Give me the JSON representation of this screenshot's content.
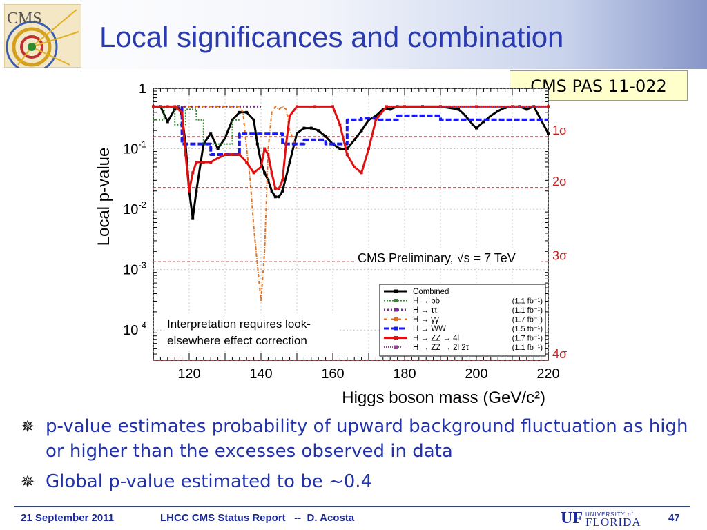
{
  "slide": {
    "title": "Local significances and combination",
    "reference": "CMS PAS 11-022",
    "logo_text": "CMS"
  },
  "bullets": [
    "p-value estimates probability of upward background fluctuation as high or higher than the excesses observed in data",
    "Global p-value estimated to be ~0.4"
  ],
  "footer": {
    "date": "21 September 2011",
    "talk": "LHCC CMS Status Report   --  D. Acosta",
    "logo_mark": "UF",
    "logo_university": "UNIVERSITY of",
    "logo_name": "FLORIDA",
    "page": "47"
  },
  "colors": {
    "title": "#2a3bb0",
    "bullet_text": "#2233aa",
    "sigma": "#cc2222"
  },
  "chart_data": {
    "type": "line",
    "xlabel": "Higgs boson mass (GeV/c²)",
    "ylabel": "Local p-value",
    "xlim": [
      110,
      220
    ],
    "ylim_log10": [
      -4.5,
      0
    ],
    "log_y": true,
    "x_ticks": [
      "120",
      "140",
      "160",
      "180",
      "200",
      "220"
    ],
    "y_ticks": [
      {
        "base": "1",
        "exp": ""
      },
      {
        "base": "10",
        "exp": "-1"
      },
      {
        "base": "10",
        "exp": "-2"
      },
      {
        "base": "10",
        "exp": "-3"
      },
      {
        "base": "10",
        "exp": "-4"
      }
    ],
    "sigma_lines": [
      {
        "label": "1σ",
        "p": 0.1587
      },
      {
        "label": "2σ",
        "p": 0.02275
      },
      {
        "label": "3σ",
        "p": 0.00135
      },
      {
        "label": "4σ",
        "p": 3.17e-05
      }
    ],
    "annotation_preliminary": "CMS Preliminary, √s = 7 TeV",
    "annotation_lee": [
      "Interpretation requires look-",
      "elsewhere effect correction"
    ],
    "legend_position": "bottom-right",
    "series": [
      {
        "name": "Combined",
        "lumi": "",
        "color": "#000000",
        "dash": "",
        "width": 3,
        "x": [
          110,
          112,
          114,
          116,
          117,
          118,
          119,
          120,
          121,
          122,
          124,
          126,
          128,
          130,
          132,
          134,
          136,
          138,
          139,
          140,
          141,
          142,
          143,
          144,
          145,
          146,
          148,
          150,
          152,
          154,
          156,
          158,
          160,
          162,
          164,
          166,
          168,
          170,
          172,
          174,
          176,
          178,
          180,
          185,
          190,
          195,
          197,
          199,
          200,
          202,
          204,
          206,
          208,
          210,
          212,
          214,
          216,
          218,
          220
        ],
        "y": [
          0.5,
          0.5,
          0.28,
          0.45,
          0.5,
          0.35,
          0.12,
          0.02,
          0.007,
          0.02,
          0.12,
          0.18,
          0.1,
          0.15,
          0.3,
          0.4,
          0.4,
          0.3,
          0.12,
          0.06,
          0.04,
          0.03,
          0.02,
          0.016,
          0.016,
          0.02,
          0.06,
          0.18,
          0.22,
          0.22,
          0.2,
          0.16,
          0.12,
          0.1,
          0.1,
          0.14,
          0.2,
          0.3,
          0.35,
          0.45,
          0.45,
          0.5,
          0.5,
          0.5,
          0.5,
          0.45,
          0.35,
          0.25,
          0.22,
          0.28,
          0.35,
          0.42,
          0.48,
          0.5,
          0.5,
          0.45,
          0.5,
          0.3,
          0.18
        ]
      },
      {
        "name": "H → bb",
        "lumi": "(1.1 fb⁻¹)",
        "color": "#2e8b2e",
        "dash": "2,2",
        "width": 2,
        "x": [
          110,
          113,
          113,
          116,
          116,
          119,
          119,
          122,
          122,
          124,
          124,
          128,
          128,
          132,
          132,
          134
        ],
        "y": [
          0.3,
          0.3,
          0.5,
          0.5,
          0.25,
          0.25,
          0.45,
          0.45,
          0.3,
          0.3,
          0.12,
          0.12,
          0.12,
          0.12,
          0.3,
          0.3
        ]
      },
      {
        "name": "H → ττ",
        "lumi": "(1.1 fb⁻¹)",
        "color": "#7b2a9e",
        "dash": "2,3",
        "width": 3,
        "x": [
          110,
          116,
          122,
          130,
          140
        ],
        "y": [
          0.5,
          0.5,
          0.5,
          0.5,
          0.5
        ]
      },
      {
        "name": "H → γγ",
        "lumi": "(1.7 fb⁻¹)",
        "color": "#e07020",
        "dash": "5,2,1,2",
        "width": 2,
        "x": [
          110,
          116,
          120,
          124,
          126,
          128,
          130,
          132,
          134,
          135,
          136,
          137,
          138,
          139,
          140,
          141,
          142,
          143,
          144,
          145,
          146,
          147,
          148,
          150
        ],
        "y": [
          0.5,
          0.5,
          0.5,
          0.5,
          0.5,
          0.5,
          0.5,
          0.5,
          0.5,
          0.4,
          0.1,
          0.03,
          0.005,
          0.0012,
          0.0003,
          0.002,
          0.1,
          0.4,
          0.5,
          0.45,
          0.5,
          0.45,
          0.2,
          0.1
        ]
      },
      {
        "name": "H → WW",
        "lumi": "(1.5 fb⁻¹)",
        "color": "#1a1aee",
        "dash": "8,3",
        "width": 4,
        "x": [
          118,
          118,
          126,
          126,
          134,
          134,
          142,
          142,
          146,
          146,
          152,
          152,
          158,
          158,
          164,
          164,
          168,
          168,
          172,
          172,
          178,
          178,
          190,
          190,
          200,
          200,
          220
        ],
        "y": [
          0.5,
          0.12,
          0.12,
          0.08,
          0.08,
          0.18,
          0.18,
          0.18,
          0.18,
          0.12,
          0.12,
          0.14,
          0.14,
          0.12,
          0.12,
          0.3,
          0.3,
          0.32,
          0.32,
          0.3,
          0.3,
          0.35,
          0.35,
          0.3,
          0.3,
          0.3,
          0.3
        ]
      },
      {
        "name": "H → ZZ → 4l",
        "lumi": "(1.7 fb⁻¹)",
        "color": "#dd1111",
        "dash": "",
        "width": 3,
        "x": [
          110,
          114,
          116,
          118,
          119,
          120,
          121,
          122,
          124,
          126,
          128,
          130,
          132,
          134,
          136,
          138,
          140,
          141,
          142,
          143,
          144,
          145,
          146,
          147,
          148,
          150,
          155,
          160,
          162,
          164,
          166,
          168,
          170,
          172,
          175,
          180,
          190,
          200,
          210,
          220
        ],
        "y": [
          0.5,
          0.5,
          0.5,
          0.4,
          0.08,
          0.02,
          0.04,
          0.06,
          0.06,
          0.06,
          0.07,
          0.08,
          0.08,
          0.08,
          0.06,
          0.04,
          0.05,
          0.1,
          0.08,
          0.04,
          0.022,
          0.022,
          0.03,
          0.12,
          0.35,
          0.5,
          0.5,
          0.5,
          0.25,
          0.08,
          0.05,
          0.04,
          0.1,
          0.3,
          0.5,
          0.5,
          0.5,
          0.5,
          0.5,
          0.5
        ]
      },
      {
        "name": "H → ZZ → 2l 2τ",
        "lumi": "(1.1 fb⁻¹)",
        "color": "#a040a0",
        "dash": "1,2",
        "width": 2,
        "x": [
          190,
          200,
          210,
          220
        ],
        "y": [
          0.5,
          0.5,
          0.5,
          0.5
        ]
      }
    ]
  }
}
